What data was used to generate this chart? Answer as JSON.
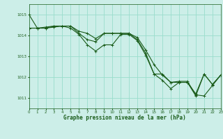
{
  "background_color": "#cceee8",
  "grid_color": "#99ddcc",
  "line_color": "#1a5c1a",
  "title": "Graphe pression niveau de la mer (hPa)",
  "xlim": [
    0,
    23
  ],
  "ylim": [
    1010.5,
    1015.5
  ],
  "yticks": [
    1011,
    1012,
    1013,
    1014,
    1015
  ],
  "xticks": [
    0,
    1,
    2,
    3,
    4,
    5,
    6,
    7,
    8,
    9,
    10,
    11,
    12,
    13,
    14,
    15,
    16,
    17,
    18,
    19,
    20,
    21,
    22,
    23
  ],
  "series": [
    [
      1015.0,
      1014.35,
      1014.35,
      1014.4,
      1014.45,
      1014.45,
      1014.1,
      1013.8,
      1013.7,
      1014.1,
      1014.1,
      1014.1,
      1014.1,
      1013.8,
      1013.15,
      1012.15,
      1011.85,
      1011.45,
      1011.75,
      1011.75,
      1011.1,
      1012.15,
      1011.65,
      1012.1
    ],
    [
      1014.35,
      1014.35,
      1014.4,
      1014.45,
      1014.45,
      1014.35,
      1014.05,
      1013.55,
      1013.25,
      1013.55,
      1013.55,
      1014.05,
      1014.05,
      1013.75,
      1013.05,
      1012.15,
      1012.15,
      1011.75,
      1011.75,
      1011.75,
      1011.2,
      1012.15,
      1011.65,
      1012.1
    ],
    [
      1014.35,
      1014.35,
      1014.35,
      1014.45,
      1014.45,
      1014.45,
      1014.2,
      1014.1,
      1013.85,
      1014.1,
      1014.1,
      1014.1,
      1014.1,
      1013.9,
      1013.3,
      1012.6,
      1012.1,
      1011.75,
      1011.8,
      1011.8,
      1011.15,
      1011.1,
      1011.6,
      1012.1
    ]
  ]
}
